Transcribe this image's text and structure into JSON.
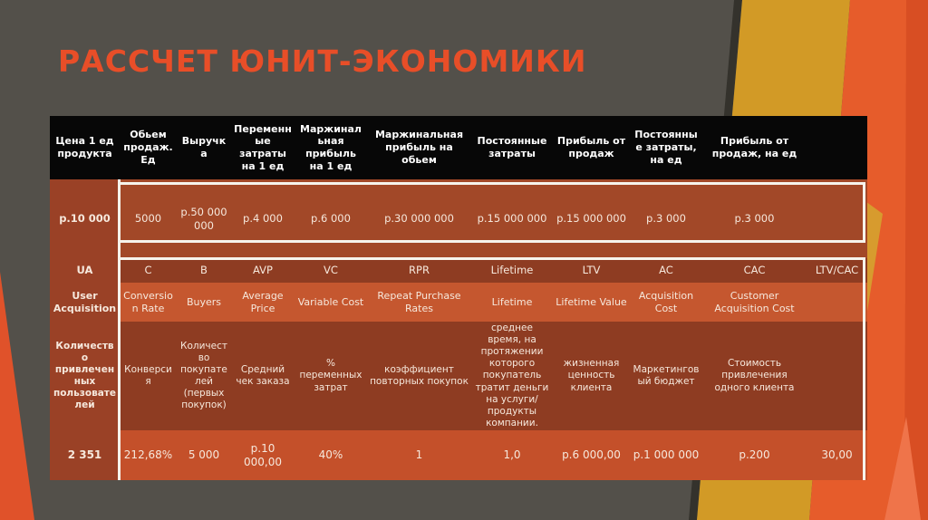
{
  "slide": {
    "title": "РАССЧЕТ ЮНИТ-ЭКОНОМИКИ"
  },
  "colors": {
    "background": "#53504a",
    "title": "#e84e28",
    "header_row": "#070707",
    "dark_rust_row": "#8e3c22",
    "light_rust_row": "#c5572f",
    "first_column": "#9a4126",
    "white_frame": "#f6f3ec",
    "gold_band": "#d29a26",
    "orange_band": "#e65c2b"
  },
  "table": {
    "rows": [
      {
        "name": "header",
        "cells": [
          "Цена 1 ед продукта",
          "Обьем продаж. Ед",
          "Выручка",
          "Переменные затраты на 1 ед",
          "Маржинальная прибыль на 1 ед",
          "Маржинальная прибыль на обьем",
          "Постоянные затраты",
          "Прибыль от продаж",
          "Постоянные затраты, на ед",
          "Прибыль от продаж, на ед",
          ""
        ]
      },
      {
        "name": "totals",
        "cells": [
          "p.10 000",
          "5000",
          "p.50 000 000",
          "p.4 000",
          "p.6 000",
          "p.30 000 000",
          "p.15 000 000",
          "p.15 000 000",
          "p.3 000",
          "p.3 000",
          ""
        ]
      },
      {
        "name": "codes",
        "cells": [
          "UA",
          "C",
          "B",
          "AVP",
          "VC",
          "RPR",
          "Lifetime",
          "LTV",
          "AC",
          "CAC",
          "LTV/CAC"
        ]
      },
      {
        "name": "terms-en",
        "cells": [
          "User Acquisition",
          "Conversion Rate",
          "Buyers",
          "Average Price",
          "Variable Cost",
          "Repeat Purchase Rates",
          "Lifetime",
          "Lifetime Value",
          "Acquisition Cost",
          "Customer Acquisition Cost",
          ""
        ]
      },
      {
        "name": "terms-ru",
        "cells": [
          "Количество привлеченных пользователей",
          "Конверсия",
          "Количество покупателей (первых покупок)",
          "Средний чек заказа",
          "% переменных затрат",
          "коэффициент повторных покупок",
          "среднее время, на протяжении которого покупатель тратит деньги на услуги/продукты компании.",
          "жизненная ценность клиента",
          "Маркетинговый бюджет",
          "Стоимость привлечения одного клиента",
          ""
        ]
      },
      {
        "name": "unit-values",
        "cells": [
          "2 351",
          "212,68%",
          "5 000",
          "p.10 000,00",
          "40%",
          "1",
          "1,0",
          "p.6 000,00",
          "p.1 000 000",
          "p.200",
          "30,00"
        ]
      }
    ]
  }
}
